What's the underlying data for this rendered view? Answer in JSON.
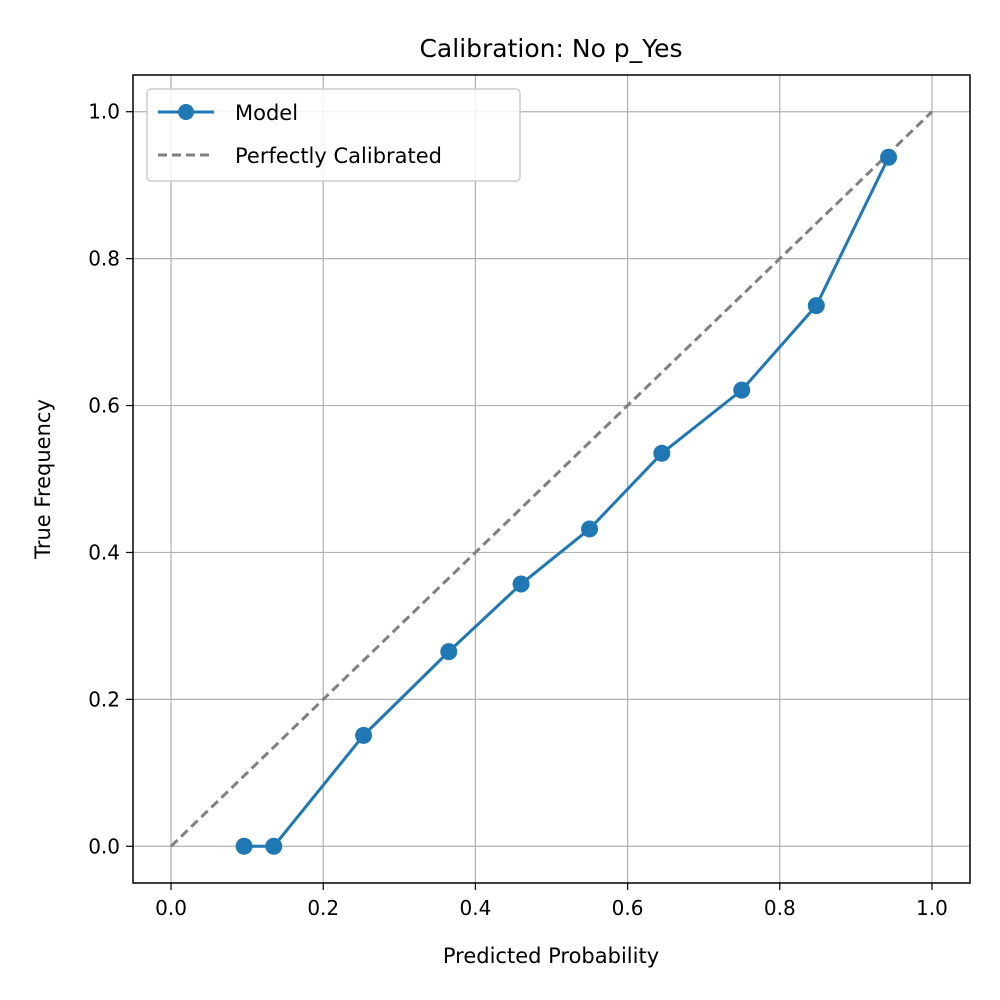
{
  "chart_data": {
    "type": "line",
    "title": "Calibration: No p_Yes",
    "xlabel": "Predicted Probability",
    "ylabel": "True Frequency",
    "xlim": [
      -0.05,
      1.05
    ],
    "ylim": [
      -0.05,
      1.05
    ],
    "xticks": [
      0.0,
      0.2,
      0.4,
      0.6,
      0.8,
      1.0
    ],
    "yticks": [
      0.0,
      0.2,
      0.4,
      0.6,
      0.8,
      1.0
    ],
    "xtick_labels": [
      "0.0",
      "0.2",
      "0.4",
      "0.6",
      "0.8",
      "1.0"
    ],
    "ytick_labels": [
      "0.0",
      "0.2",
      "0.4",
      "0.6",
      "0.8",
      "1.0"
    ],
    "grid": true,
    "legend_position": "top-left",
    "series": [
      {
        "name": "Model",
        "style": "solid-with-markers",
        "color": "#1f77b4",
        "x": [
          0.096,
          0.135,
          0.253,
          0.365,
          0.46,
          0.55,
          0.645,
          0.75,
          0.848,
          0.943
        ],
        "y": [
          0.0,
          0.0,
          0.151,
          0.265,
          0.357,
          0.432,
          0.535,
          0.621,
          0.736,
          0.938
        ]
      },
      {
        "name": "Perfectly Calibrated",
        "style": "dashed",
        "color": "#808080",
        "x": [
          0.0,
          1.0
        ],
        "y": [
          0.0,
          1.0
        ]
      }
    ]
  }
}
